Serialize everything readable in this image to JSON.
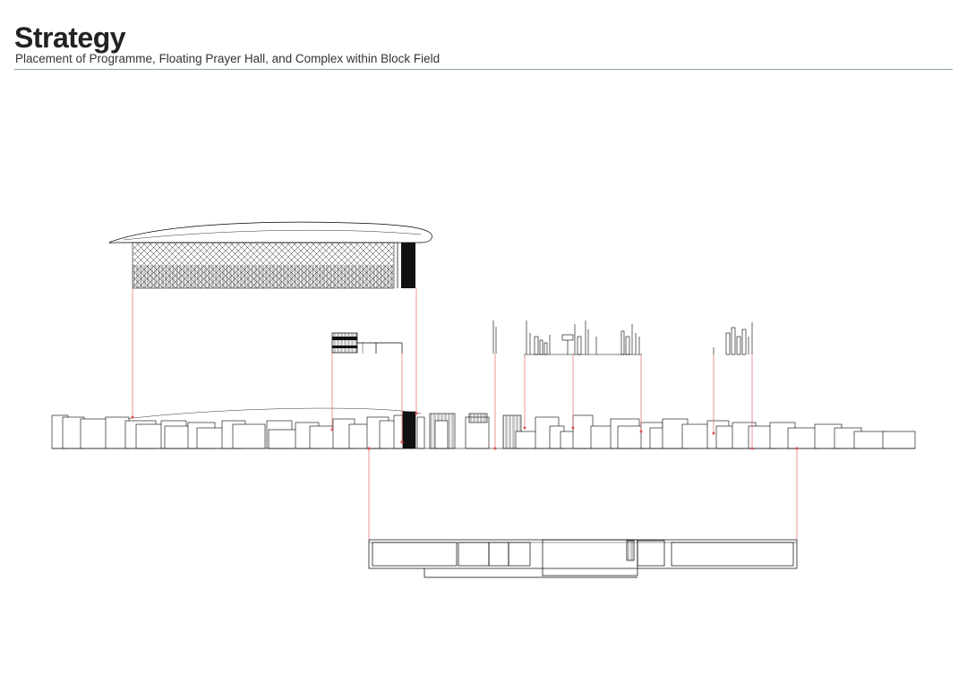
{
  "header": {
    "title": "Strategy",
    "subtitle": "Placement of Programme, Floating Prayer Hall, and Complex within Block Field"
  },
  "colors": {
    "text": "#222222",
    "rule": "#8fa3a3",
    "linework": "#000000",
    "alignment_lines": "#e05050"
  }
}
